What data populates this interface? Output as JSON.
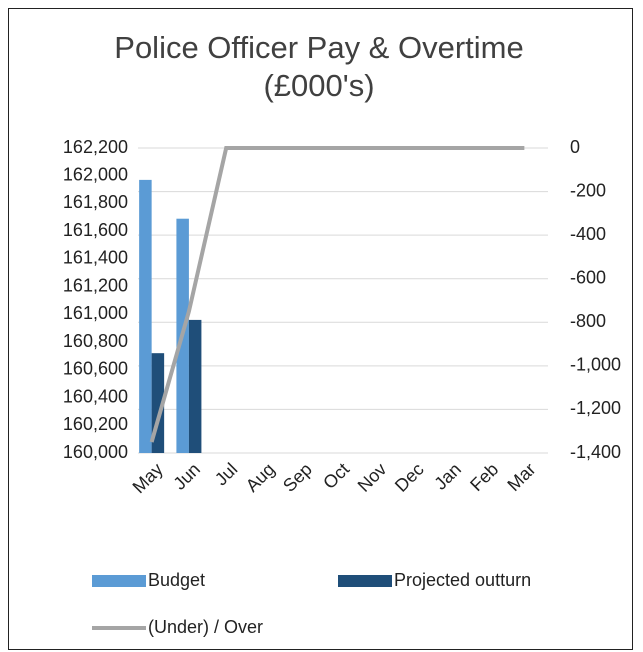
{
  "chart_data": {
    "type": "bar-line",
    "title": "Police Officer Pay & Overtime (£000's)",
    "categories": [
      "May",
      "Jun",
      "Jul",
      "Aug",
      "Sep",
      "Oct",
      "Nov",
      "Dec",
      "Jan",
      "Feb",
      "Mar"
    ],
    "series": [
      {
        "name": "Budget",
        "type": "bar",
        "color": "#5b9bd5",
        "values": [
          161970,
          161690,
          null,
          null,
          null,
          null,
          null,
          null,
          null,
          null,
          null
        ]
      },
      {
        "name": "Projected outturn",
        "type": "bar",
        "color": "#1f4e79",
        "values": [
          160720,
          160960,
          null,
          null,
          null,
          null,
          null,
          null,
          null,
          null,
          null
        ]
      },
      {
        "name": "(Under) / Over",
        "type": "line",
        "axis": "y2",
        "color": "#a5a5a5",
        "values": [
          -1350,
          -750,
          0,
          0,
          0,
          0,
          0,
          0,
          0,
          0,
          0
        ]
      }
    ],
    "ylim": [
      160000,
      162200
    ],
    "yticks": [
      {
        "value": 160000,
        "label": "160,000"
      },
      {
        "value": 160200,
        "label": "160,200"
      },
      {
        "value": 160400,
        "label": "160,400"
      },
      {
        "value": 160600,
        "label": "160,600"
      },
      {
        "value": 160800,
        "label": "160,800"
      },
      {
        "value": 161000,
        "label": "161,000"
      },
      {
        "value": 161200,
        "label": "161,200"
      },
      {
        "value": 161400,
        "label": "161,400"
      },
      {
        "value": 161600,
        "label": "161,600"
      },
      {
        "value": 161800,
        "label": "161,800"
      },
      {
        "value": 162000,
        "label": "162,000"
      },
      {
        "value": 162200,
        "label": "162,200"
      }
    ],
    "y2lim": [
      -1400,
      0
    ],
    "y2ticks": [
      {
        "value": -1400,
        "label": "-1,400"
      },
      {
        "value": -1200,
        "label": "-1,200"
      },
      {
        "value": -1000,
        "label": "-1,000"
      },
      -800,
      -600,
      -400,
      -200,
      0
    ],
    "grid": true
  }
}
